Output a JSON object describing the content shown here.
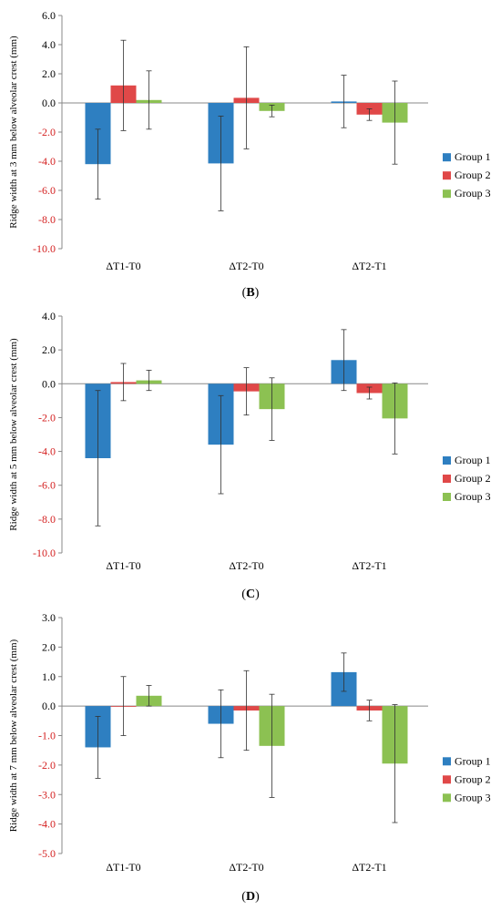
{
  "chart_data": [
    {
      "type": "bar",
      "panel": "B",
      "ylabel": "Ridge width at 3 mm below alveolar crest (mm)",
      "ylim": [
        -10,
        6
      ],
      "yticks": [
        6,
        4,
        2,
        0,
        -2,
        -4,
        -6,
        -8,
        -10
      ],
      "categories": [
        "ΔT1-T0",
        "ΔT2-T0",
        "ΔT2-T1"
      ],
      "series": [
        {
          "name": "Group 1",
          "color": "#2e7fc1",
          "values": [
            -4.2,
            -4.15,
            0.1
          ],
          "errors": [
            2.4,
            3.25,
            1.8
          ]
        },
        {
          "name": "Group 2",
          "color": "#e04848",
          "values": [
            1.2,
            0.35,
            -0.8
          ],
          "errors": [
            3.1,
            3.5,
            0.4
          ]
        },
        {
          "name": "Group 3",
          "color": "#8cc152",
          "values": [
            0.2,
            -0.55,
            -1.35
          ],
          "errors": [
            2.0,
            0.4,
            2.85
          ]
        }
      ],
      "legend_position": "right",
      "grid": false
    },
    {
      "type": "bar",
      "panel": "C",
      "ylabel": "Ridge width at 5 mm below alveolar crest (mm)",
      "ylim": [
        -10,
        4
      ],
      "yticks": [
        4,
        2,
        0,
        -2,
        -4,
        -6,
        -8,
        -10
      ],
      "categories": [
        "ΔT1-T0",
        "ΔT2-T0",
        "ΔT2-T1"
      ],
      "series": [
        {
          "name": "Group 1",
          "color": "#2e7fc1",
          "values": [
            -4.4,
            -3.6,
            1.4
          ],
          "errors": [
            4.0,
            2.9,
            1.8
          ]
        },
        {
          "name": "Group 2",
          "color": "#e04848",
          "values": [
            0.1,
            -0.45,
            -0.55
          ],
          "errors": [
            1.1,
            1.4,
            0.35
          ]
        },
        {
          "name": "Group 3",
          "color": "#8cc152",
          "values": [
            0.2,
            -1.5,
            -2.05
          ],
          "errors": [
            0.6,
            1.85,
            2.1
          ]
        }
      ],
      "legend_position": "right",
      "grid": false
    },
    {
      "type": "bar",
      "panel": "D",
      "ylabel": "Ridge width at 7 mm below alveolar crest (mm)",
      "ylim": [
        -5,
        3
      ],
      "yticks": [
        3,
        2,
        1,
        0,
        -1,
        -2,
        -3,
        -4,
        -5
      ],
      "categories": [
        "ΔT1-T0",
        "ΔT2-T0",
        "ΔT2-T1"
      ],
      "series": [
        {
          "name": "Group 1",
          "color": "#2e7fc1",
          "values": [
            -1.4,
            -0.6,
            1.15
          ],
          "errors": [
            1.05,
            1.15,
            0.65
          ]
        },
        {
          "name": "Group 2",
          "color": "#e04848",
          "values": [
            0.0,
            -0.15,
            -0.15
          ],
          "errors": [
            1.0,
            1.35,
            0.35
          ]
        },
        {
          "name": "Group 3",
          "color": "#8cc152",
          "values": [
            0.35,
            -1.35,
            -1.95
          ],
          "errors": [
            0.35,
            1.75,
            2.0
          ]
        }
      ],
      "legend_position": "right",
      "grid": false
    }
  ]
}
